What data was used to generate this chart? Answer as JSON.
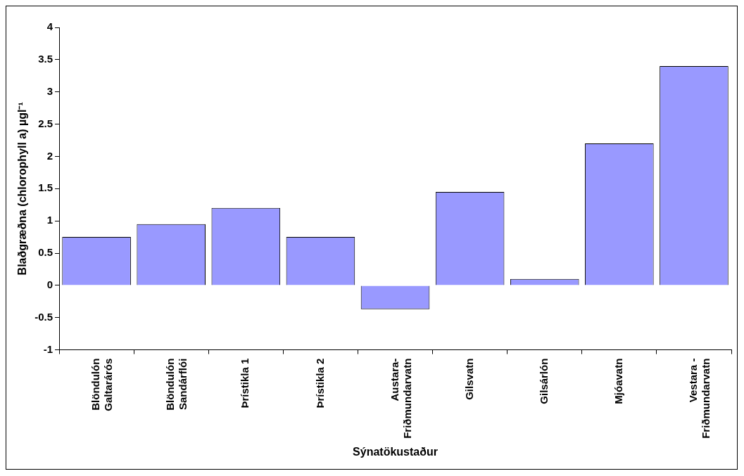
{
  "chart_data": {
    "type": "bar",
    "xlabel": "Sýnatökustaður",
    "ylabel": "Blaðgræðna (chlorophyll a) µgl⁻¹",
    "categories": [
      "Blöndulón\nGaltarárós",
      "Blöndulón\nSandárflói",
      "Þrístikla 1",
      "Þrístikla 2",
      "Austara-\nFriðmundarvatn",
      "Gilsvatn",
      "Gilsárlón",
      "Mjóavatn",
      "Vestara -\nFriðmundarvatn"
    ],
    "values": [
      0.75,
      0.95,
      1.2,
      0.75,
      -0.37,
      1.45,
      0.1,
      2.2,
      3.4
    ],
    "color": "#9999ff",
    "ylim": [
      -1,
      4
    ],
    "yticks": [
      -1,
      -0.5,
      0,
      0.5,
      1,
      1.5,
      2,
      2.5,
      3,
      3.5,
      4
    ],
    "grid": false,
    "legend": false
  }
}
